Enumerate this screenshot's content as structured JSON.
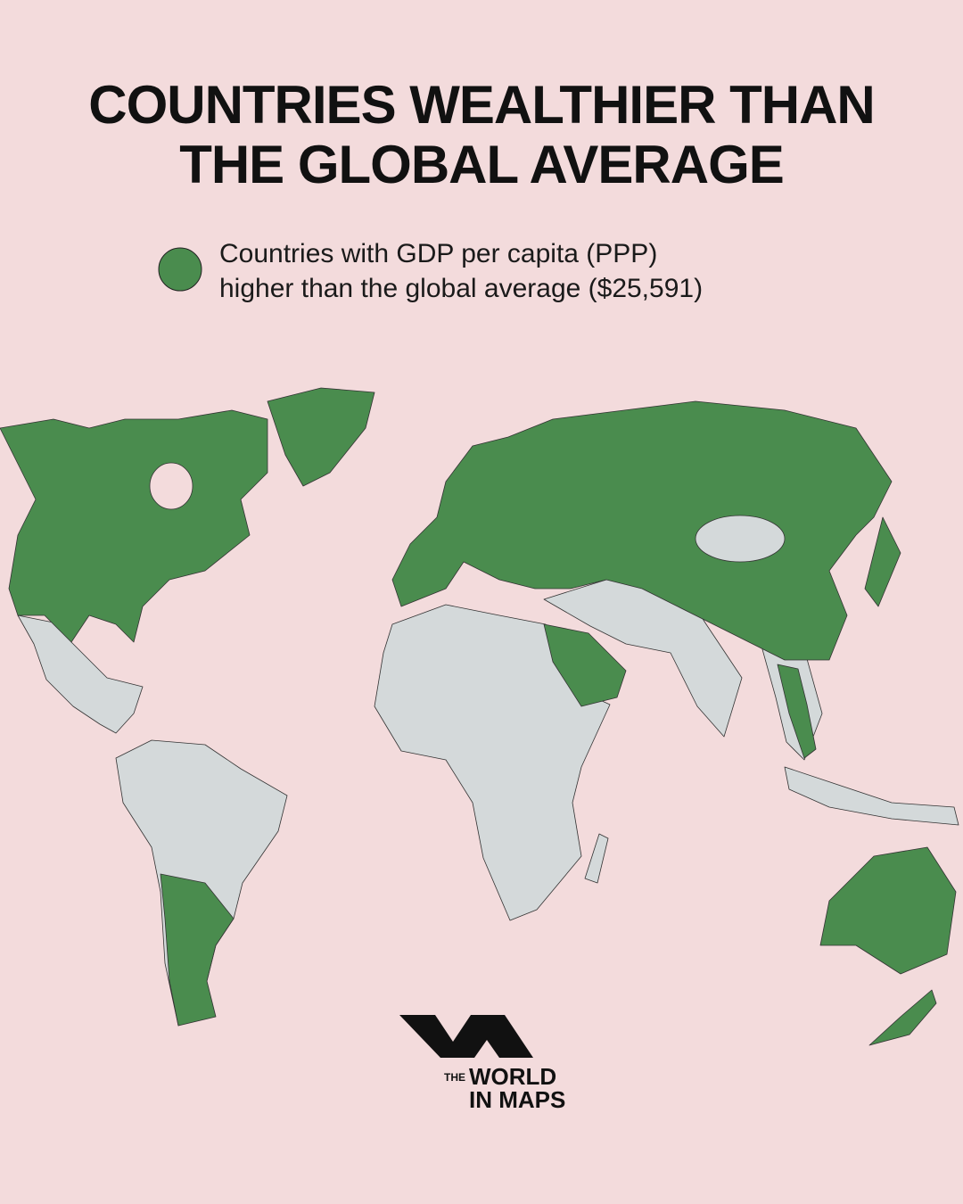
{
  "header": {
    "title_lines": [
      "COUNTRIES WEALTHIER THAN",
      "THE GLOBAL AVERAGE"
    ]
  },
  "legend": {
    "color": "#4a8c4e",
    "label_lines": [
      "Countries with GDP per capita (PPP)",
      "higher than the global average ($25,591)"
    ]
  },
  "logo": {
    "small": "THE",
    "line1": "WORLD",
    "line2": "IN MAPS"
  }
}
